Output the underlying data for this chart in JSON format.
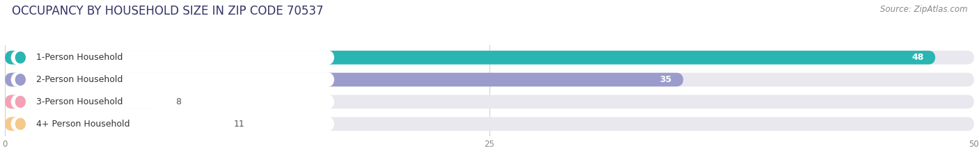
{
  "title": "OCCUPANCY BY HOUSEHOLD SIZE IN ZIP CODE 70537",
  "source": "Source: ZipAtlas.com",
  "categories": [
    "1-Person Household",
    "2-Person Household",
    "3-Person Household",
    "4+ Person Household"
  ],
  "values": [
    48,
    35,
    8,
    11
  ],
  "bar_colors": [
    "#2ab5b2",
    "#9b9ccc",
    "#f4a0b5",
    "#f5c98a"
  ],
  "xlim": [
    0,
    50
  ],
  "xticks": [
    0,
    25,
    50
  ],
  "title_fontsize": 12,
  "source_fontsize": 8.5,
  "bar_label_fontsize": 9,
  "category_fontsize": 9,
  "background_color": "#ffffff",
  "bar_background_color": "#e8e8ee"
}
